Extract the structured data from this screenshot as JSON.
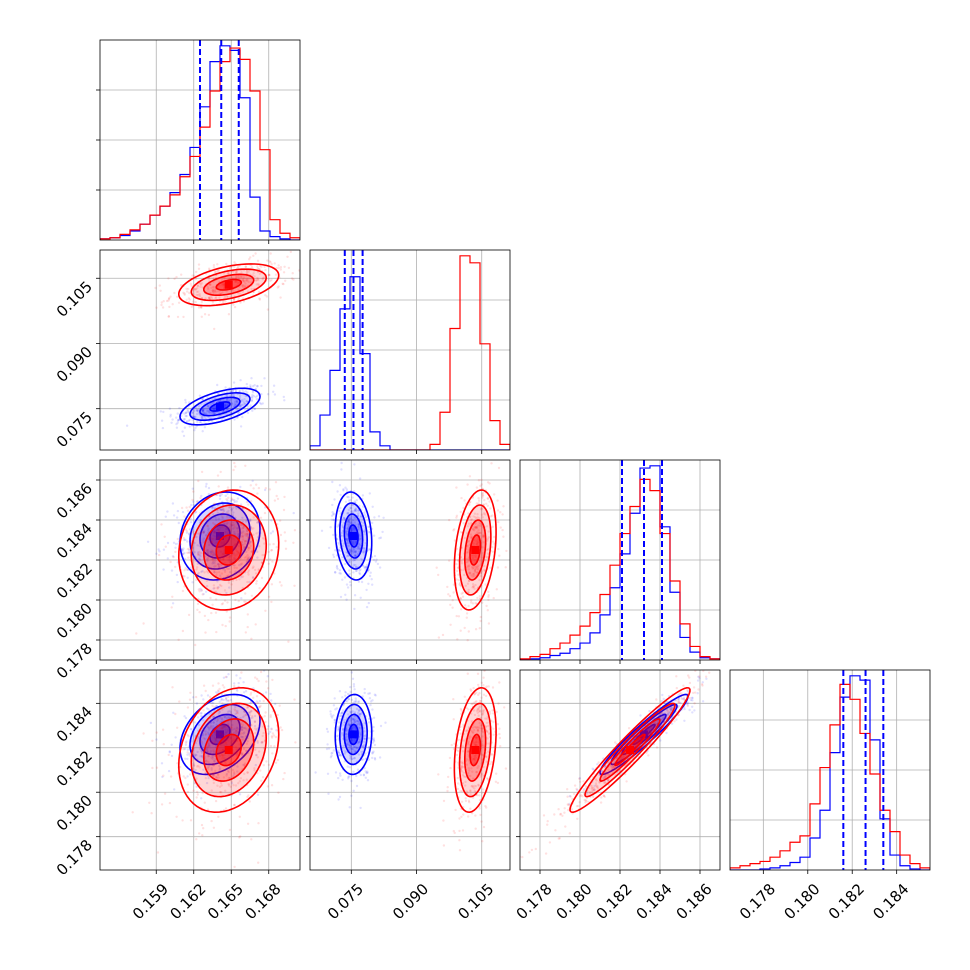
{
  "chart_data": {
    "type": "corner",
    "title": "",
    "series": [
      {
        "name": "",
        "color": "#0000ff"
      },
      {
        "name": "",
        "color": "#ff0000"
      }
    ],
    "parameters": [
      {
        "range": [
          0.1545,
          0.1705
        ],
        "ticks": [
          0.159,
          0.162,
          0.165,
          0.168
        ],
        "tick_labels": [
          "0.159",
          "0.162",
          "0.165",
          "0.168"
        ]
      },
      {
        "range": [
          0.0655,
          0.1115
        ],
        "ticks": [
          0.075,
          0.09,
          0.105
        ],
        "tick_labels": [
          "0.075",
          "0.090",
          "0.105"
        ]
      },
      {
        "range": [
          0.177,
          0.187
        ],
        "ticks": [
          0.178,
          0.18,
          0.182,
          0.184,
          0.186
        ],
        "tick_labels": [
          "0.178",
          "0.180",
          "0.182",
          "0.184",
          "0.186"
        ]
      },
      {
        "range": [
          0.1765,
          0.1855
        ],
        "ticks": [
          0.178,
          0.18,
          0.182,
          0.184
        ],
        "tick_labels": [
          "0.178",
          "0.180",
          "0.182",
          "0.184"
        ]
      }
    ],
    "blue_quantiles": [
      [
        0.1625,
        0.1642,
        0.1656
      ],
      [
        0.0735,
        0.0755,
        0.0776
      ],
      [
        0.1821,
        0.1832,
        0.1841
      ],
      [
        0.1816,
        0.1826,
        0.1834
      ]
    ],
    "histograms": [
      {
        "bin_edges": [
          0.1545,
          0.1553,
          0.1561,
          0.1569,
          0.1577,
          0.1585,
          0.1593,
          0.1601,
          0.1609,
          0.1617,
          0.1625,
          0.1633,
          0.1641,
          0.1649,
          0.1657,
          0.1665,
          0.1673,
          0.1681,
          0.1689,
          0.1697,
          0.1705
        ],
        "blue": [
          1,
          2,
          4,
          8,
          14,
          22,
          30,
          42,
          58,
          82,
          118,
          158,
          172,
          168,
          126,
          38,
          8,
          3,
          1,
          0
        ],
        "red": [
          1,
          2,
          5,
          9,
          14,
          22,
          30,
          40,
          56,
          74,
          100,
          132,
          158,
          170,
          160,
          132,
          80,
          18,
          6,
          2
        ]
      },
      {
        "bin_edges": [
          0.0655,
          0.0678,
          0.0701,
          0.0724,
          0.0747,
          0.077,
          0.0793,
          0.0816,
          0.0839,
          0.0862,
          0.0885,
          0.0908,
          0.0931,
          0.0954,
          0.0977,
          0.1,
          0.1023,
          0.1046,
          0.1069,
          0.1092,
          0.1115
        ],
        "blue": [
          3,
          25,
          57,
          101,
          124,
          69,
          13,
          3,
          0,
          0,
          0,
          0,
          0,
          0,
          0,
          0,
          0,
          0,
          0,
          0
        ],
        "red": [
          0,
          0,
          0,
          0,
          0,
          0,
          0,
          0,
          0,
          0,
          0,
          0,
          4,
          27,
          87,
          139,
          134,
          76,
          21,
          4
        ]
      },
      {
        "bin_edges": [
          0.177,
          0.1775,
          0.178,
          0.1785,
          0.179,
          0.1795,
          0.18,
          0.1805,
          0.181,
          0.1815,
          0.182,
          0.1825,
          0.183,
          0.1835,
          0.184,
          0.1845,
          0.185,
          0.1855,
          0.186,
          0.1865,
          0.187
        ],
        "blue": [
          0,
          1,
          2,
          4,
          6,
          10,
          15,
          24,
          40,
          64,
          94,
          130,
          170,
          172,
          118,
          60,
          20,
          7,
          2,
          1
        ],
        "red": [
          1,
          3,
          5,
          10,
          15,
          22,
          30,
          42,
          58,
          84,
          112,
          136,
          160,
          150,
          112,
          70,
          32,
          12,
          3,
          1
        ]
      },
      {
        "bin_edges": [
          0.1765,
          0.17695,
          0.1774,
          0.17785,
          0.1783,
          0.17875,
          0.1792,
          0.17965,
          0.1801,
          0.18055,
          0.181,
          0.18145,
          0.1819,
          0.18235,
          0.1828,
          0.18325,
          0.1837,
          0.18415,
          0.1846,
          0.18505,
          0.1855
        ],
        "blue": [
          0,
          0,
          0,
          1,
          2,
          4,
          7,
          12,
          30,
          56,
          110,
          162,
          182,
          178,
          122,
          48,
          14,
          4,
          1,
          0
        ],
        "red": [
          2,
          4,
          6,
          8,
          12,
          18,
          26,
          32,
          62,
          96,
          136,
          174,
          160,
          128,
          90,
          56,
          36,
          14,
          6,
          2
        ]
      }
    ],
    "gaussian_2d": {
      "blue": {
        "mean": [
          0.1641,
          0.0755,
          0.1832,
          0.1826
        ],
        "std": [
          0.0016,
          0.0021,
          0.0011,
          0.0009
        ],
        "corr": [
          [
            1.0,
            0.55,
            0.15,
            0.35
          ],
          [
            0.55,
            1.0,
            -0.15,
            0.05
          ],
          [
            0.15,
            -0.15,
            1.0,
            0.95
          ],
          [
            0.35,
            0.05,
            0.95,
            1.0
          ]
        ]
      },
      "red": {
        "mean": [
          0.1648,
          0.1035,
          0.1825,
          0.1819
        ],
        "std": [
          0.002,
          0.0024,
          0.0015,
          0.0014
        ],
        "corr": [
          [
            1.0,
            0.45,
            0.1,
            0.25
          ],
          [
            0.45,
            1.0,
            0.3,
            0.3
          ],
          [
            0.1,
            0.3,
            1.0,
            0.96
          ],
          [
            0.25,
            0.3,
            0.96,
            1.0
          ]
        ]
      }
    },
    "grid": true
  }
}
